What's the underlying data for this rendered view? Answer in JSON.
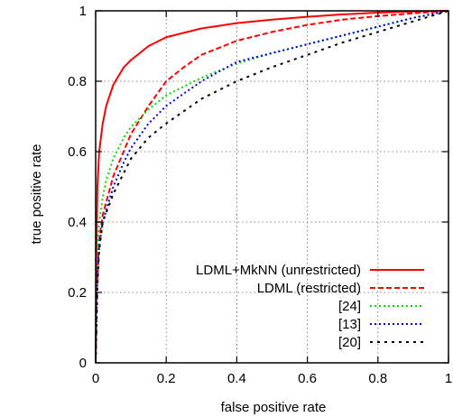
{
  "chart_data": {
    "type": "line",
    "xlabel": "false positive rate",
    "ylabel": "true positive rate",
    "xlim": [
      0,
      1
    ],
    "ylim": [
      0,
      1
    ],
    "xticks": [
      "0",
      "0.2",
      "0.4",
      "0.6",
      "0.8",
      "1"
    ],
    "yticks": [
      "0",
      "0.2",
      "0.4",
      "0.6",
      "0.8",
      "1"
    ],
    "grid": true,
    "legend_position": "bottom-right",
    "series": [
      {
        "name": "LDML+MkNN (unrestricted)",
        "color": "#ff0000",
        "dash": "solid",
        "points": [
          [
            0,
            0
          ],
          [
            0.002,
            0.3
          ],
          [
            0.005,
            0.5
          ],
          [
            0.01,
            0.6
          ],
          [
            0.02,
            0.68
          ],
          [
            0.03,
            0.73
          ],
          [
            0.05,
            0.79
          ],
          [
            0.08,
            0.84
          ],
          [
            0.1,
            0.86
          ],
          [
            0.15,
            0.9
          ],
          [
            0.2,
            0.925
          ],
          [
            0.3,
            0.95
          ],
          [
            0.4,
            0.965
          ],
          [
            0.5,
            0.975
          ],
          [
            0.6,
            0.983
          ],
          [
            0.7,
            0.99
          ],
          [
            0.8,
            0.995
          ],
          [
            0.9,
            0.998
          ],
          [
            1,
            1
          ]
        ]
      },
      {
        "name": "LDML (restricted)",
        "color": "#ff0000",
        "dash": "dashed",
        "points": [
          [
            0,
            0
          ],
          [
            0.003,
            0.2
          ],
          [
            0.01,
            0.35
          ],
          [
            0.02,
            0.42
          ],
          [
            0.05,
            0.53
          ],
          [
            0.1,
            0.65
          ],
          [
            0.15,
            0.73
          ],
          [
            0.2,
            0.8
          ],
          [
            0.25,
            0.84
          ],
          [
            0.3,
            0.875
          ],
          [
            0.4,
            0.915
          ],
          [
            0.5,
            0.94
          ],
          [
            0.6,
            0.96
          ],
          [
            0.7,
            0.975
          ],
          [
            0.8,
            0.985
          ],
          [
            0.9,
            0.993
          ],
          [
            1,
            1
          ]
        ]
      },
      {
        "name": "[24]",
        "color": "#00dd00",
        "dash": "dotted",
        "points": [
          [
            0,
            0
          ],
          [
            0.005,
            0.3
          ],
          [
            0.01,
            0.4
          ],
          [
            0.02,
            0.47
          ],
          [
            0.03,
            0.52
          ],
          [
            0.05,
            0.58
          ],
          [
            0.08,
            0.64
          ],
          [
            0.1,
            0.67
          ],
          [
            0.15,
            0.72
          ],
          [
            0.2,
            0.76
          ],
          [
            0.3,
            0.81
          ],
          [
            0.4,
            0.85
          ],
          [
            0.5,
            0.88
          ],
          [
            0.6,
            0.905
          ],
          [
            0.7,
            0.93
          ],
          [
            0.8,
            0.955
          ],
          [
            0.9,
            0.98
          ],
          [
            1,
            1
          ]
        ]
      },
      {
        "name": "[13]",
        "color": "#0000ee",
        "dash": "dotted",
        "points": [
          [
            0,
            0
          ],
          [
            0.005,
            0.25
          ],
          [
            0.01,
            0.33
          ],
          [
            0.02,
            0.4
          ],
          [
            0.05,
            0.5
          ],
          [
            0.08,
            0.57
          ],
          [
            0.1,
            0.61
          ],
          [
            0.15,
            0.68
          ],
          [
            0.2,
            0.73
          ],
          [
            0.3,
            0.8
          ],
          [
            0.4,
            0.855
          ],
          [
            0.5,
            0.88
          ],
          [
            0.6,
            0.905
          ],
          [
            0.7,
            0.93
          ],
          [
            0.8,
            0.955
          ],
          [
            0.9,
            0.98
          ],
          [
            1,
            1
          ]
        ]
      },
      {
        "name": "[20]",
        "color": "#000000",
        "dash": "dashdot",
        "points": [
          [
            0,
            0
          ],
          [
            0.005,
            0.22
          ],
          [
            0.01,
            0.32
          ],
          [
            0.02,
            0.4
          ],
          [
            0.05,
            0.48
          ],
          [
            0.1,
            0.58
          ],
          [
            0.15,
            0.64
          ],
          [
            0.2,
            0.68
          ],
          [
            0.3,
            0.75
          ],
          [
            0.4,
            0.8
          ],
          [
            0.5,
            0.84
          ],
          [
            0.6,
            0.875
          ],
          [
            0.7,
            0.91
          ],
          [
            0.8,
            0.94
          ],
          [
            0.9,
            0.97
          ],
          [
            1,
            1
          ]
        ]
      }
    ]
  }
}
